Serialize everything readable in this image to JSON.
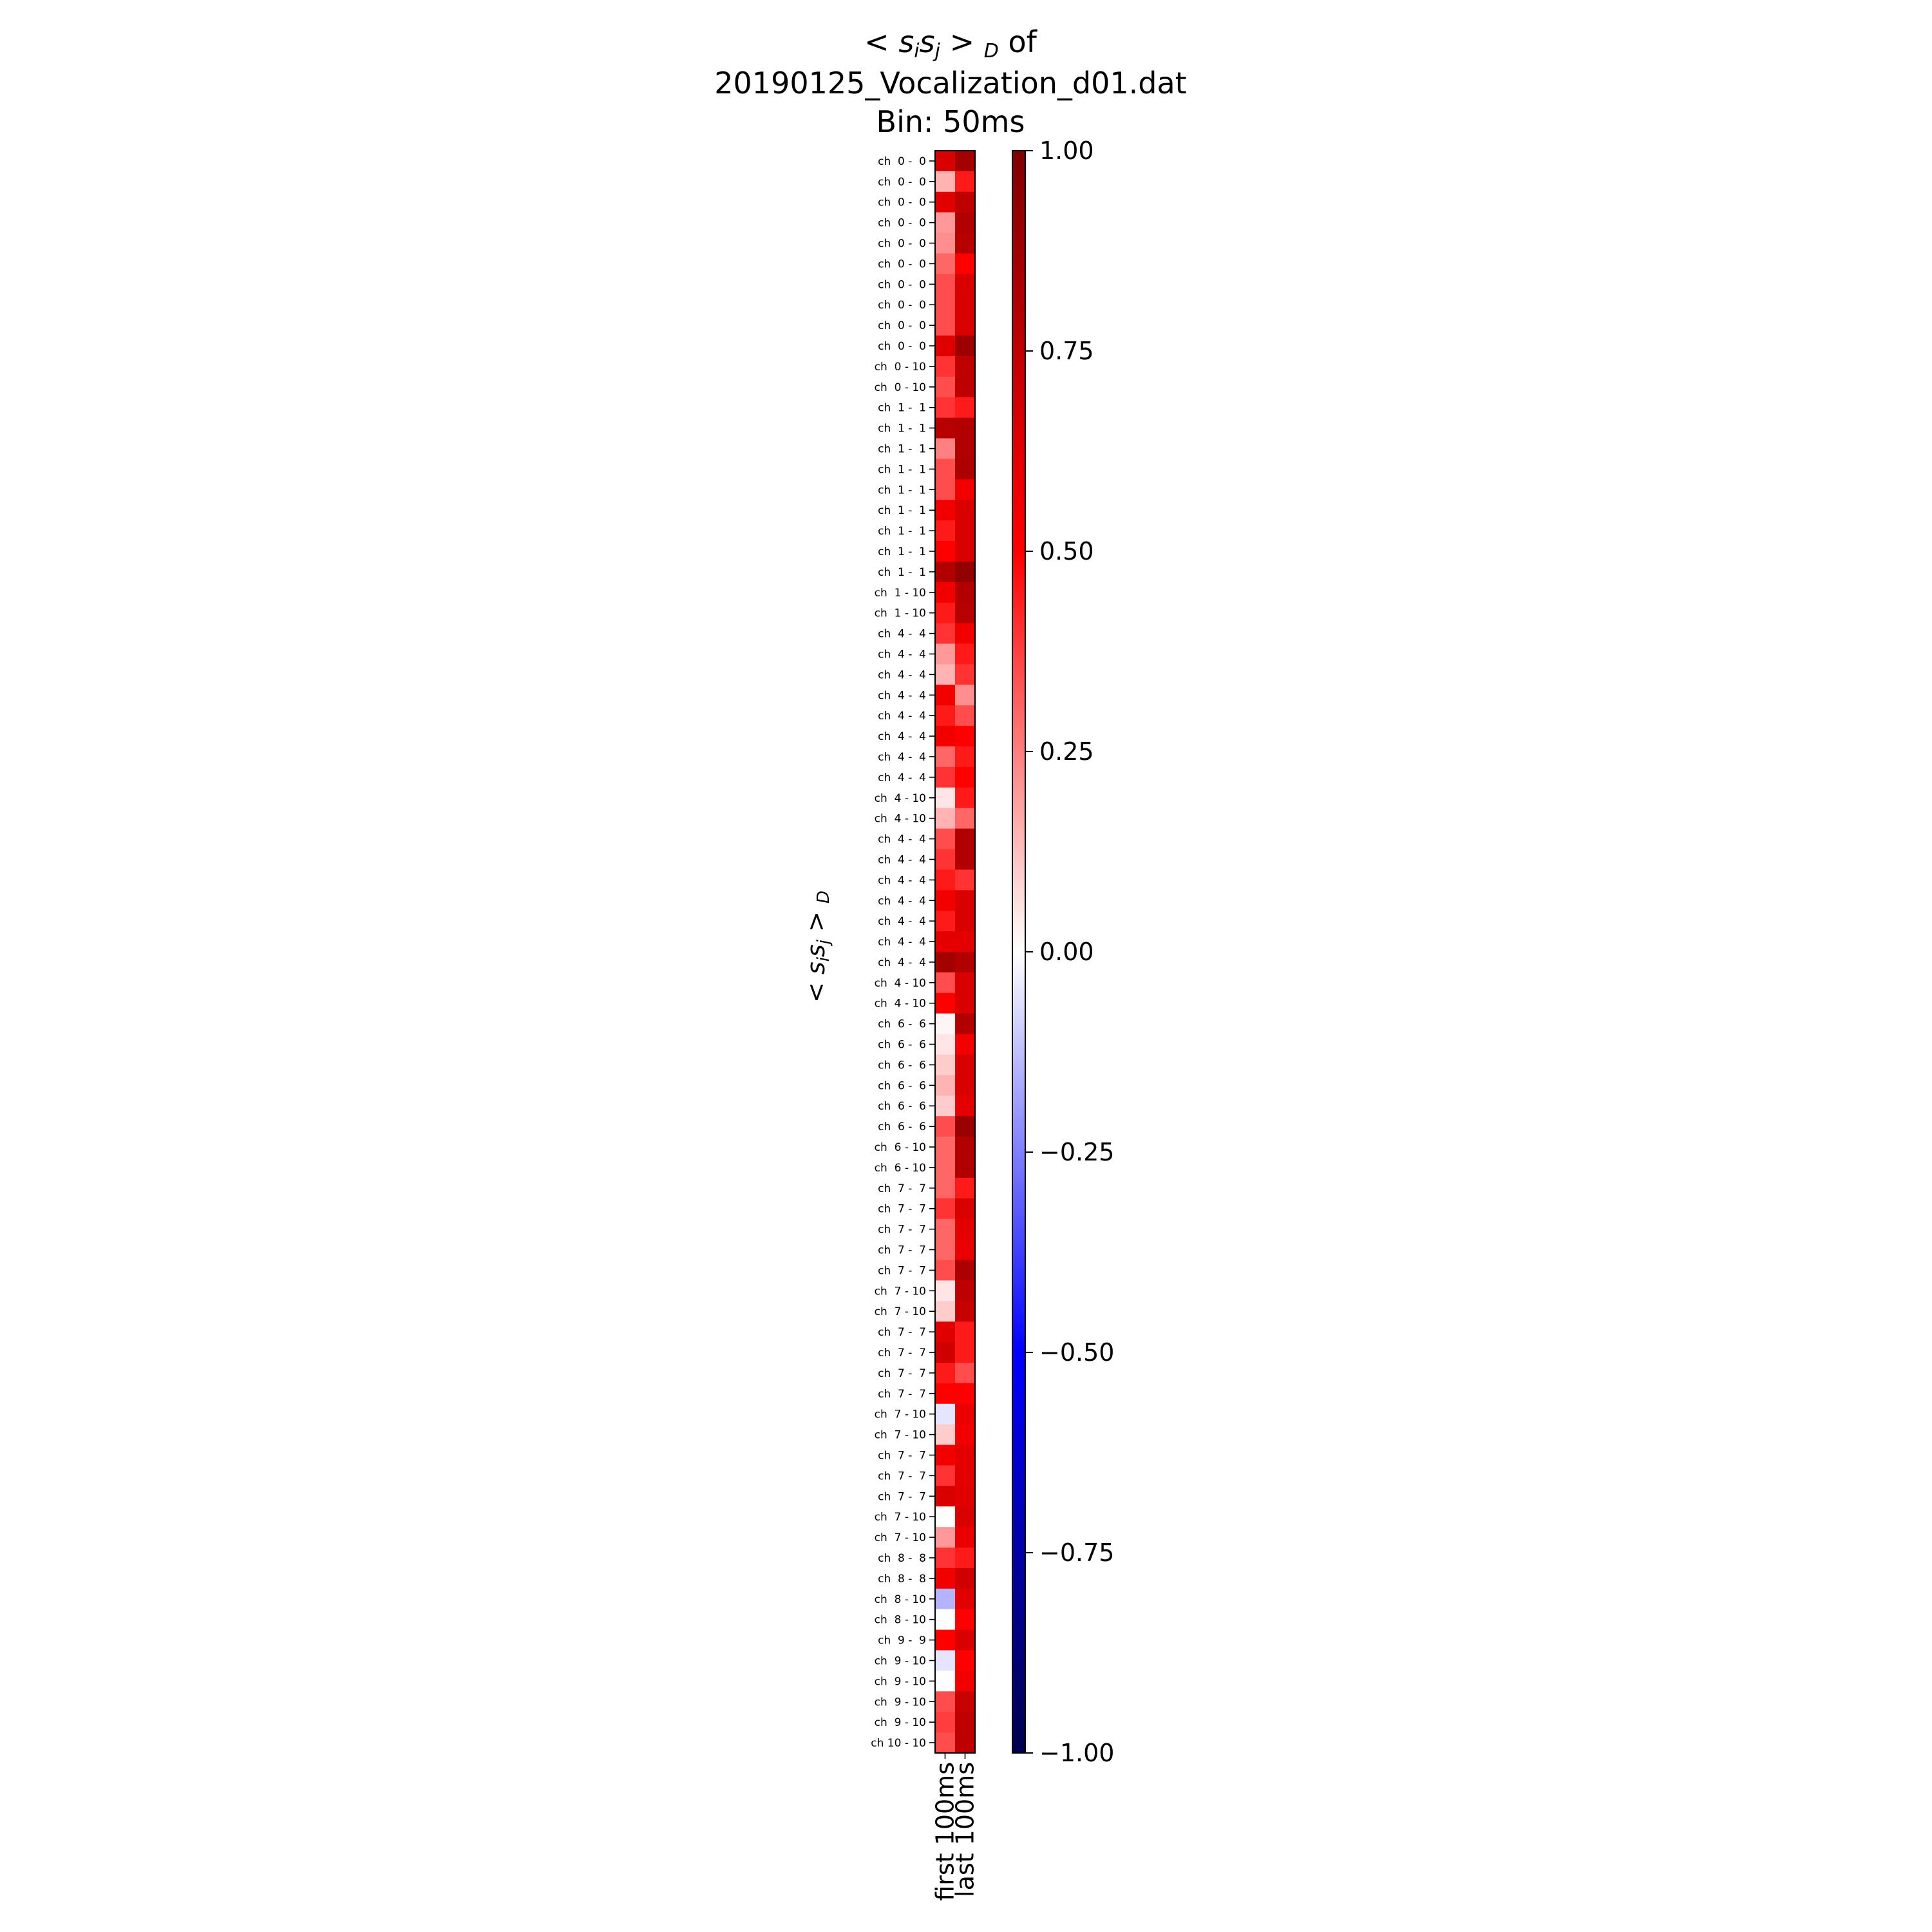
{
  "chart_data": {
    "type": "heatmap",
    "title": {
      "line1_prefix": "< s",
      "line1_sub_i": "i",
      "line1_s2": "s",
      "line1_sub_j": "j",
      "line1_gt": " > ",
      "line1_sub_D": "D",
      "line1_suffix": " of",
      "line2": "20190125_Vocalization_d01.dat",
      "line3": "Bin: 50ms"
    },
    "ylabel": {
      "prefix": "< s",
      "sub_i": "i",
      "s2": "s",
      "sub_j": "j",
      "gt": " > ",
      "sub_D": "D"
    },
    "columns": [
      "first 100ms",
      "last 100ms"
    ],
    "rows": [
      "ch  0 -  0",
      "ch  0 -  0",
      "ch  0 -  0",
      "ch  0 -  0",
      "ch  0 -  0",
      "ch  0 -  0",
      "ch  0 -  0",
      "ch  0 -  0",
      "ch  0 -  0",
      "ch  0 -  0",
      "ch  0 - 10",
      "ch  0 - 10",
      "ch  1 -  1",
      "ch  1 -  1",
      "ch  1 -  1",
      "ch  1 -  1",
      "ch  1 -  1",
      "ch  1 -  1",
      "ch  1 -  1",
      "ch  1 -  1",
      "ch  1 -  1",
      "ch  1 - 10",
      "ch  1 - 10",
      "ch  4 -  4",
      "ch  4 -  4",
      "ch  4 -  4",
      "ch  4 -  4",
      "ch  4 -  4",
      "ch  4 -  4",
      "ch  4 -  4",
      "ch  4 -  4",
      "ch  4 - 10",
      "ch  4 - 10",
      "ch  4 -  4",
      "ch  4 -  4",
      "ch  4 -  4",
      "ch  4 -  4",
      "ch  4 -  4",
      "ch  4 -  4",
      "ch  4 -  4",
      "ch  4 - 10",
      "ch  4 - 10",
      "ch  6 -  6",
      "ch  6 -  6",
      "ch  6 -  6",
      "ch  6 -  6",
      "ch  6 -  6",
      "ch  6 -  6",
      "ch  6 - 10",
      "ch  6 - 10",
      "ch  7 -  7",
      "ch  7 -  7",
      "ch  7 -  7",
      "ch  7 -  7",
      "ch  7 -  7",
      "ch  7 - 10",
      "ch  7 - 10",
      "ch  7 -  7",
      "ch  7 -  7",
      "ch  7 -  7",
      "ch  7 -  7",
      "ch  7 - 10",
      "ch  7 - 10",
      "ch  7 -  7",
      "ch  7 -  7",
      "ch  7 -  7",
      "ch  7 - 10",
      "ch  7 - 10",
      "ch  8 -  8",
      "ch  8 -  8",
      "ch  8 - 10",
      "ch  8 - 10",
      "ch  9 -  9",
      "ch  9 - 10",
      "ch  9 - 10",
      "ch  9 - 10",
      "ch  9 - 10",
      "ch 10 - 10"
    ],
    "values": [
      [
        0.65,
        0.85
      ],
      [
        0.15,
        0.45
      ],
      [
        0.62,
        0.75
      ],
      [
        0.2,
        0.8
      ],
      [
        0.22,
        0.78
      ],
      [
        0.3,
        0.5
      ],
      [
        0.35,
        0.65
      ],
      [
        0.35,
        0.65
      ],
      [
        0.35,
        0.65
      ],
      [
        0.62,
        0.88
      ],
      [
        0.4,
        0.75
      ],
      [
        0.35,
        0.75
      ],
      [
        0.4,
        0.45
      ],
      [
        0.78,
        0.8
      ],
      [
        0.25,
        0.8
      ],
      [
        0.35,
        0.82
      ],
      [
        0.35,
        0.55
      ],
      [
        0.55,
        0.65
      ],
      [
        0.45,
        0.65
      ],
      [
        0.5,
        0.65
      ],
      [
        0.8,
        0.92
      ],
      [
        0.55,
        0.8
      ],
      [
        0.45,
        0.78
      ],
      [
        0.4,
        0.55
      ],
      [
        0.2,
        0.45
      ],
      [
        0.15,
        0.4
      ],
      [
        0.55,
        0.22
      ],
      [
        0.45,
        0.35
      ],
      [
        0.55,
        0.5
      ],
      [
        0.3,
        0.45
      ],
      [
        0.4,
        0.5
      ],
      [
        0.05,
        0.45
      ],
      [
        0.15,
        0.3
      ],
      [
        0.35,
        0.8
      ],
      [
        0.4,
        0.8
      ],
      [
        0.45,
        0.4
      ],
      [
        0.55,
        0.65
      ],
      [
        0.45,
        0.65
      ],
      [
        0.6,
        0.6
      ],
      [
        0.85,
        0.8
      ],
      [
        0.35,
        0.65
      ],
      [
        0.5,
        0.65
      ],
      [
        0.02,
        0.8
      ],
      [
        0.05,
        0.55
      ],
      [
        0.1,
        0.65
      ],
      [
        0.15,
        0.65
      ],
      [
        0.1,
        0.6
      ],
      [
        0.35,
        0.9
      ],
      [
        0.3,
        0.8
      ],
      [
        0.3,
        0.8
      ],
      [
        0.3,
        0.45
      ],
      [
        0.4,
        0.65
      ],
      [
        0.3,
        0.6
      ],
      [
        0.3,
        0.58
      ],
      [
        0.35,
        0.82
      ],
      [
        0.05,
        0.75
      ],
      [
        0.1,
        0.72
      ],
      [
        0.62,
        0.45
      ],
      [
        0.68,
        0.45
      ],
      [
        0.45,
        0.35
      ],
      [
        0.5,
        0.5
      ],
      [
        -0.05,
        0.58
      ],
      [
        0.1,
        0.55
      ],
      [
        0.55,
        0.6
      ],
      [
        0.4,
        0.6
      ],
      [
        0.65,
        0.62
      ],
      [
        0.0,
        0.65
      ],
      [
        0.2,
        0.58
      ],
      [
        0.4,
        0.45
      ],
      [
        0.55,
        0.68
      ],
      [
        -0.15,
        0.62
      ],
      [
        0.0,
        0.5
      ],
      [
        0.5,
        0.65
      ],
      [
        -0.05,
        0.5
      ],
      [
        0.0,
        0.55
      ],
      [
        0.35,
        0.72
      ],
      [
        0.38,
        0.75
      ],
      [
        0.35,
        0.75
      ]
    ],
    "colorbar": {
      "colormap": "seismic",
      "vmin": -1.0,
      "vmax": 1.0,
      "ticks": [
        1.0,
        0.75,
        0.5,
        0.25,
        0.0,
        -0.25,
        -0.5,
        -0.75,
        -1.0
      ],
      "tick_labels": [
        "1.00",
        "0.75",
        "0.50",
        "0.25",
        "0.00",
        "−0.25",
        "−0.50",
        "−0.75",
        "−1.00"
      ]
    }
  }
}
